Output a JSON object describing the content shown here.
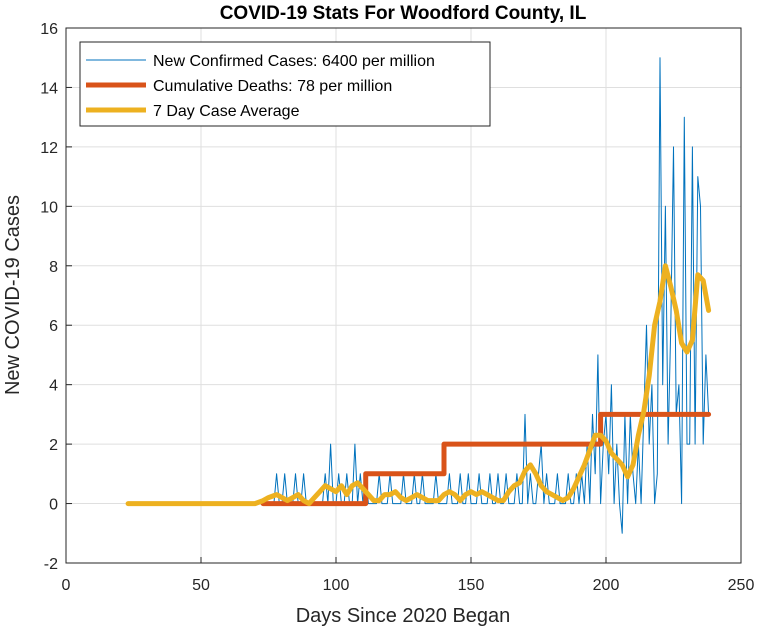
{
  "chart_data": {
    "type": "line",
    "title": "COVID-19 Stats For Woodford County, IL",
    "xlabel": "Days Since 2020 Began",
    "ylabel": "New COVID-19 Cases",
    "xlim": [
      0,
      250
    ],
    "ylim": [
      -2,
      16
    ],
    "xticks": [
      0,
      50,
      100,
      150,
      200,
      250
    ],
    "yticks": [
      -2,
      0,
      2,
      4,
      6,
      8,
      10,
      12,
      14,
      16
    ],
    "grid": true,
    "legend_position": "top-left",
    "series": [
      {
        "name": "New Confirmed Cases: 6400 per million",
        "color": "#0072BD",
        "style": "thin",
        "x": [
          23,
          24,
          25,
          26,
          27,
          28,
          29,
          30,
          31,
          32,
          33,
          34,
          35,
          36,
          37,
          38,
          39,
          40,
          41,
          42,
          43,
          44,
          45,
          46,
          47,
          48,
          49,
          50,
          51,
          52,
          53,
          54,
          55,
          56,
          57,
          58,
          59,
          60,
          61,
          62,
          63,
          64,
          65,
          66,
          67,
          68,
          69,
          70,
          71,
          72,
          73,
          74,
          75,
          76,
          77,
          78,
          79,
          80,
          81,
          82,
          83,
          84,
          85,
          86,
          87,
          88,
          89,
          90,
          91,
          92,
          93,
          94,
          95,
          96,
          97,
          98,
          99,
          100,
          101,
          102,
          103,
          104,
          105,
          106,
          107,
          108,
          109,
          110,
          111,
          112,
          113,
          114,
          115,
          116,
          117,
          118,
          119,
          120,
          121,
          122,
          123,
          124,
          125,
          126,
          127,
          128,
          129,
          130,
          131,
          132,
          133,
          134,
          135,
          136,
          137,
          138,
          139,
          140,
          141,
          142,
          143,
          144,
          145,
          146,
          147,
          148,
          149,
          150,
          151,
          152,
          153,
          154,
          155,
          156,
          157,
          158,
          159,
          160,
          161,
          162,
          163,
          164,
          165,
          166,
          167,
          168,
          169,
          170,
          171,
          172,
          173,
          174,
          175,
          176,
          177,
          178,
          179,
          180,
          181,
          182,
          183,
          184,
          185,
          186,
          187,
          188,
          189,
          190,
          191,
          192,
          193,
          194,
          195,
          196,
          197,
          198,
          199,
          200,
          201,
          202,
          203,
          204,
          205,
          206,
          207,
          208,
          209,
          210,
          211,
          212,
          213,
          214,
          215,
          216,
          217,
          218,
          219,
          220,
          221,
          222,
          223,
          224,
          225,
          226,
          227,
          228,
          229,
          230,
          231,
          232,
          233,
          234,
          235,
          236,
          237,
          238
        ],
        "y": [
          0,
          0,
          0,
          0,
          0,
          0,
          0,
          0,
          0,
          0,
          0,
          0,
          0,
          0,
          0,
          0,
          0,
          0,
          0,
          0,
          0,
          0,
          0,
          0,
          0,
          0,
          0,
          0,
          0,
          0,
          0,
          0,
          0,
          0,
          0,
          0,
          0,
          0,
          0,
          0,
          0,
          0,
          0,
          0,
          0,
          0,
          0,
          0,
          0,
          0,
          0,
          0,
          0,
          0,
          0,
          1,
          0,
          0,
          1,
          0,
          0,
          0,
          1,
          0,
          0,
          1,
          0,
          0,
          0,
          0,
          0,
          0,
          0,
          1,
          0,
          2,
          0,
          0,
          1,
          0,
          0,
          1,
          0,
          0,
          2,
          0,
          1,
          0,
          1,
          0,
          0,
          0,
          0,
          1,
          0,
          0,
          0,
          1,
          0,
          0,
          0,
          0,
          1,
          0,
          0,
          0,
          1,
          0,
          0,
          1,
          0,
          0,
          0,
          0,
          1,
          0,
          0,
          0,
          0,
          1,
          0,
          0,
          0,
          1,
          0,
          0,
          1,
          0,
          0,
          0,
          1,
          0,
          0,
          0,
          1,
          0,
          0,
          1,
          0,
          0,
          1,
          0,
          0,
          0,
          1,
          0,
          0,
          3,
          0,
          1,
          0,
          0,
          1,
          2,
          0,
          1,
          0,
          0,
          0,
          1,
          0,
          0,
          0,
          1,
          0,
          0,
          1,
          0,
          1,
          0,
          2,
          0,
          3,
          1,
          5,
          0,
          2,
          3,
          1,
          4,
          0,
          2,
          0,
          -1,
          3,
          0,
          3,
          1,
          0,
          2,
          0,
          3,
          6,
          2,
          4,
          0,
          1,
          15,
          4,
          10,
          2,
          6,
          12,
          3,
          4,
          0,
          13,
          2,
          2,
          12,
          2,
          11,
          10,
          2,
          5,
          3
        ],
        "x_start_note": ""
      },
      {
        "name": "Cumulative Deaths: 78 per million",
        "color": "#D95319",
        "style": "thick",
        "x": [
          73,
          111,
          111,
          140,
          140,
          198,
          198,
          238
        ],
        "y": [
          0,
          0,
          1,
          1,
          2,
          2,
          3,
          3
        ]
      },
      {
        "name": "7 Day Case Average",
        "color": "#EDB120",
        "style": "thick",
        "x": [
          23,
          30,
          40,
          50,
          60,
          70,
          73,
          75,
          78,
          80,
          82,
          84,
          86,
          88,
          90,
          92,
          94,
          96,
          98,
          100,
          102,
          104,
          106,
          108,
          110,
          112,
          114,
          116,
          118,
          120,
          122,
          124,
          126,
          128,
          130,
          132,
          134,
          136,
          138,
          140,
          142,
          144,
          146,
          148,
          150,
          152,
          154,
          156,
          158,
          160,
          162,
          164,
          166,
          168,
          170,
          172,
          174,
          176,
          178,
          180,
          182,
          184,
          186,
          188,
          190,
          192,
          194,
          196,
          198,
          200,
          202,
          204,
          206,
          208,
          210,
          212,
          214,
          216,
          218,
          220,
          222,
          224,
          226,
          228,
          230,
          232,
          234,
          236,
          238
        ],
        "y": [
          0,
          0,
          0,
          0,
          0,
          0,
          0.1,
          0.2,
          0.3,
          0.2,
          0.1,
          0.2,
          0.3,
          0.1,
          0,
          0.2,
          0.4,
          0.6,
          0.5,
          0.4,
          0.6,
          0.3,
          0.6,
          0.7,
          0.5,
          0.3,
          0.1,
          0.1,
          0.3,
          0.3,
          0.4,
          0.2,
          0.1,
          0.2,
          0.3,
          0.2,
          0.1,
          0.1,
          0.1,
          0.3,
          0.4,
          0.3,
          0.1,
          0.3,
          0.4,
          0.3,
          0.4,
          0.3,
          0.2,
          0.1,
          0.1,
          0.4,
          0.6,
          0.7,
          1.1,
          1.3,
          1.0,
          0.6,
          0.4,
          0.3,
          0.2,
          0.1,
          0.2,
          0.5,
          0.9,
          1.3,
          1.8,
          2.3,
          2.3,
          2.1,
          1.7,
          1.5,
          1.3,
          0.9,
          1.3,
          2.3,
          3.1,
          4.3,
          6.0,
          6.8,
          8.0,
          7.3,
          6.5,
          5.4,
          5.1,
          5.5,
          7.7,
          7.5,
          6.5
        ]
      }
    ]
  }
}
